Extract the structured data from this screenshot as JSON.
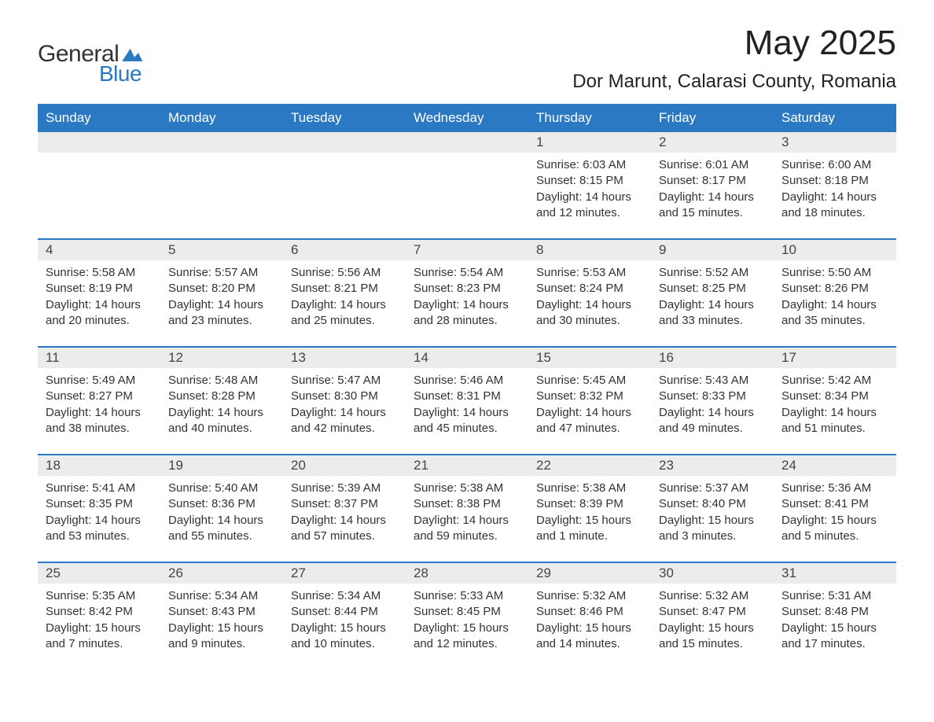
{
  "brand": {
    "word1": "General",
    "word2": "Blue",
    "colors": {
      "accent": "#2b79c2",
      "text": "#333333"
    }
  },
  "title": "May 2025",
  "location": "Dor Marunt, Calarasi County, Romania",
  "weekdays": [
    "Sunday",
    "Monday",
    "Tuesday",
    "Wednesday",
    "Thursday",
    "Friday",
    "Saturday"
  ],
  "labels": {
    "sunrise": "Sunrise:",
    "sunset": "Sunset:",
    "daylight": "Daylight:"
  },
  "style": {
    "header_bg": "#2b79c2",
    "header_fg": "#ffffff",
    "daynum_bg": "#ececec",
    "row_border": "#2b79c2",
    "body_bg": "#ffffff",
    "font_family": "Arial",
    "title_fontsize_pt": 33,
    "location_fontsize_pt": 18,
    "weekday_fontsize_pt": 13,
    "cell_fontsize_pt": 11
  },
  "weeks": [
    [
      null,
      null,
      null,
      null,
      {
        "n": "1",
        "sr": "6:03 AM",
        "ss": "8:15 PM",
        "dl": "14 hours and 12 minutes."
      },
      {
        "n": "2",
        "sr": "6:01 AM",
        "ss": "8:17 PM",
        "dl": "14 hours and 15 minutes."
      },
      {
        "n": "3",
        "sr": "6:00 AM",
        "ss": "8:18 PM",
        "dl": "14 hours and 18 minutes."
      }
    ],
    [
      {
        "n": "4",
        "sr": "5:58 AM",
        "ss": "8:19 PM",
        "dl": "14 hours and 20 minutes."
      },
      {
        "n": "5",
        "sr": "5:57 AM",
        "ss": "8:20 PM",
        "dl": "14 hours and 23 minutes."
      },
      {
        "n": "6",
        "sr": "5:56 AM",
        "ss": "8:21 PM",
        "dl": "14 hours and 25 minutes."
      },
      {
        "n": "7",
        "sr": "5:54 AM",
        "ss": "8:23 PM",
        "dl": "14 hours and 28 minutes."
      },
      {
        "n": "8",
        "sr": "5:53 AM",
        "ss": "8:24 PM",
        "dl": "14 hours and 30 minutes."
      },
      {
        "n": "9",
        "sr": "5:52 AM",
        "ss": "8:25 PM",
        "dl": "14 hours and 33 minutes."
      },
      {
        "n": "10",
        "sr": "5:50 AM",
        "ss": "8:26 PM",
        "dl": "14 hours and 35 minutes."
      }
    ],
    [
      {
        "n": "11",
        "sr": "5:49 AM",
        "ss": "8:27 PM",
        "dl": "14 hours and 38 minutes."
      },
      {
        "n": "12",
        "sr": "5:48 AM",
        "ss": "8:28 PM",
        "dl": "14 hours and 40 minutes."
      },
      {
        "n": "13",
        "sr": "5:47 AM",
        "ss": "8:30 PM",
        "dl": "14 hours and 42 minutes."
      },
      {
        "n": "14",
        "sr": "5:46 AM",
        "ss": "8:31 PM",
        "dl": "14 hours and 45 minutes."
      },
      {
        "n": "15",
        "sr": "5:45 AM",
        "ss": "8:32 PM",
        "dl": "14 hours and 47 minutes."
      },
      {
        "n": "16",
        "sr": "5:43 AM",
        "ss": "8:33 PM",
        "dl": "14 hours and 49 minutes."
      },
      {
        "n": "17",
        "sr": "5:42 AM",
        "ss": "8:34 PM",
        "dl": "14 hours and 51 minutes."
      }
    ],
    [
      {
        "n": "18",
        "sr": "5:41 AM",
        "ss": "8:35 PM",
        "dl": "14 hours and 53 minutes."
      },
      {
        "n": "19",
        "sr": "5:40 AM",
        "ss": "8:36 PM",
        "dl": "14 hours and 55 minutes."
      },
      {
        "n": "20",
        "sr": "5:39 AM",
        "ss": "8:37 PM",
        "dl": "14 hours and 57 minutes."
      },
      {
        "n": "21",
        "sr": "5:38 AM",
        "ss": "8:38 PM",
        "dl": "14 hours and 59 minutes."
      },
      {
        "n": "22",
        "sr": "5:38 AM",
        "ss": "8:39 PM",
        "dl": "15 hours and 1 minute."
      },
      {
        "n": "23",
        "sr": "5:37 AM",
        "ss": "8:40 PM",
        "dl": "15 hours and 3 minutes."
      },
      {
        "n": "24",
        "sr": "5:36 AM",
        "ss": "8:41 PM",
        "dl": "15 hours and 5 minutes."
      }
    ],
    [
      {
        "n": "25",
        "sr": "5:35 AM",
        "ss": "8:42 PM",
        "dl": "15 hours and 7 minutes."
      },
      {
        "n": "26",
        "sr": "5:34 AM",
        "ss": "8:43 PM",
        "dl": "15 hours and 9 minutes."
      },
      {
        "n": "27",
        "sr": "5:34 AM",
        "ss": "8:44 PM",
        "dl": "15 hours and 10 minutes."
      },
      {
        "n": "28",
        "sr": "5:33 AM",
        "ss": "8:45 PM",
        "dl": "15 hours and 12 minutes."
      },
      {
        "n": "29",
        "sr": "5:32 AM",
        "ss": "8:46 PM",
        "dl": "15 hours and 14 minutes."
      },
      {
        "n": "30",
        "sr": "5:32 AM",
        "ss": "8:47 PM",
        "dl": "15 hours and 15 minutes."
      },
      {
        "n": "31",
        "sr": "5:31 AM",
        "ss": "8:48 PM",
        "dl": "15 hours and 17 minutes."
      }
    ]
  ]
}
